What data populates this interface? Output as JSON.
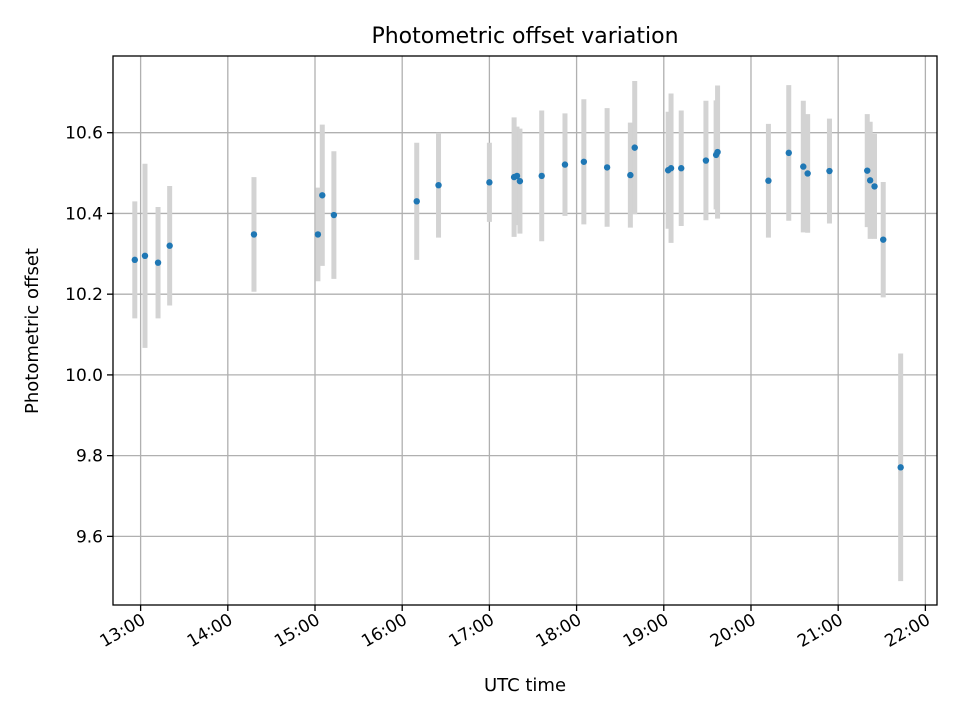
{
  "chart_data": {
    "type": "scatter",
    "title": "Photometric offset variation",
    "xlabel": "UTC time",
    "ylabel": "Photometric offset",
    "x_ticks": [
      "13:00",
      "14:00",
      "15:00",
      "16:00",
      "17:00",
      "18:00",
      "19:00",
      "20:00",
      "21:00",
      "22:00"
    ],
    "y_ticks": [
      "9.6",
      "9.8",
      "10.0",
      "10.2",
      "10.4",
      "10.6"
    ],
    "xlim": [
      "12:41",
      "22:08"
    ],
    "ylim": [
      9.43,
      10.79
    ],
    "grid": true,
    "colors": {
      "point": "#1f77b4",
      "errorbar": "#d3d3d3"
    },
    "series": [
      {
        "points": [
          {
            "x": "12:56",
            "y": 10.285,
            "err": 0.145
          },
          {
            "x": "13:03",
            "y": 10.295,
            "err": 0.228
          },
          {
            "x": "13:12",
            "y": 10.278,
            "err": 0.138
          },
          {
            "x": "13:20",
            "y": 10.32,
            "err": 0.148
          },
          {
            "x": "14:18",
            "y": 10.348,
            "err": 0.142
          },
          {
            "x": "15:02",
            "y": 10.348,
            "err": 0.116
          },
          {
            "x": "15:05",
            "y": 10.445,
            "err": 0.175
          },
          {
            "x": "15:13",
            "y": 10.396,
            "err": 0.158
          },
          {
            "x": "16:10",
            "y": 10.43,
            "err": 0.145
          },
          {
            "x": "16:25",
            "y": 10.47,
            "err": 0.13
          },
          {
            "x": "17:00",
            "y": 10.477,
            "err": 0.098
          },
          {
            "x": "17:17",
            "y": 10.49,
            "err": 0.148
          },
          {
            "x": "17:19",
            "y": 10.493,
            "err": 0.122
          },
          {
            "x": "17:21",
            "y": 10.48,
            "err": 0.13
          },
          {
            "x": "17:36",
            "y": 10.493,
            "err": 0.162
          },
          {
            "x": "17:52",
            "y": 10.521,
            "err": 0.127
          },
          {
            "x": "18:05",
            "y": 10.528,
            "err": 0.155
          },
          {
            "x": "18:21",
            "y": 10.514,
            "err": 0.147
          },
          {
            "x": "18:37",
            "y": 10.495,
            "err": 0.13
          },
          {
            "x": "18:40",
            "y": 10.563,
            "err": 0.165
          },
          {
            "x": "19:03",
            "y": 10.507,
            "err": 0.145
          },
          {
            "x": "19:05",
            "y": 10.512,
            "err": 0.185
          },
          {
            "x": "19:12",
            "y": 10.512,
            "err": 0.143
          },
          {
            "x": "19:29",
            "y": 10.531,
            "err": 0.148
          },
          {
            "x": "19:36",
            "y": 10.545,
            "err": 0.135
          },
          {
            "x": "19:37",
            "y": 10.552,
            "err": 0.165
          },
          {
            "x": "20:12",
            "y": 10.481,
            "err": 0.141
          },
          {
            "x": "20:26",
            "y": 10.55,
            "err": 0.168
          },
          {
            "x": "20:36",
            "y": 10.516,
            "err": 0.163
          },
          {
            "x": "20:39",
            "y": 10.499,
            "err": 0.147
          },
          {
            "x": "20:54",
            "y": 10.505,
            "err": 0.13
          },
          {
            "x": "21:20",
            "y": 10.506,
            "err": 0.14
          },
          {
            "x": "21:22",
            "y": 10.482,
            "err": 0.145
          },
          {
            "x": "21:25",
            "y": 10.467,
            "err": 0.13
          },
          {
            "x": "21:31",
            "y": 10.335,
            "err": 0.143
          },
          {
            "x": "21:43",
            "y": 9.771,
            "err": 0.282
          }
        ]
      }
    ]
  }
}
